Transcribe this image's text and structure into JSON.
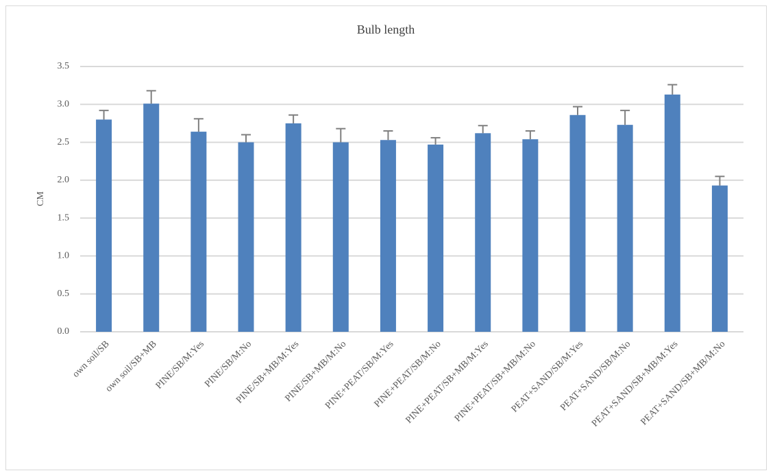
{
  "chart_data": {
    "type": "bar",
    "title": "Bulb length",
    "y_label": "CM",
    "categories": [
      "own soil/SB",
      "own soil/SB+MB",
      "PINE/SB/M:Yes",
      "PINE/SB/M:No",
      "PINE/SB+MB/M:Yes",
      "PINE/SB+MB/M:No",
      "PINE+PEAT/SB/M:Yes",
      "PINE+PEAT/SB/M:No",
      "PINE+PEAT/SB+MB/M:Yes",
      "PINE+PEAT/SB+MB/M:No",
      "PEAT+SAND/SB/M:Yes",
      "PEAT+SAND/SB/M:No",
      "PEAT+SAND/SB+MB/M:Yes",
      "PEAT+SAND/SB+MB/M:No"
    ],
    "values": [
      2.8,
      3.01,
      2.64,
      2.5,
      2.75,
      2.5,
      2.53,
      2.47,
      2.62,
      2.54,
      2.86,
      2.73,
      3.13,
      1.93
    ],
    "errors": [
      0.12,
      0.17,
      0.17,
      0.1,
      0.11,
      0.18,
      0.12,
      0.09,
      0.1,
      0.11,
      0.11,
      0.19,
      0.13,
      0.12
    ],
    "color": "#4f81bd",
    "error_color": "#7f7f7f",
    "ylim": [
      0,
      3.5
    ],
    "yticks": [
      {
        "value": 0,
        "label": "0.0"
      },
      {
        "value": 0.5,
        "label": "0.5"
      },
      {
        "value": 1,
        "label": "1.0"
      },
      {
        "value": 1.5,
        "label": "1.5"
      },
      {
        "value": 2,
        "label": "2.0"
      },
      {
        "value": 2.5,
        "label": "2.5"
      },
      {
        "value": 3,
        "label": "3.0"
      },
      {
        "value": 3.5,
        "label": "3.5"
      }
    ],
    "grid": true
  }
}
